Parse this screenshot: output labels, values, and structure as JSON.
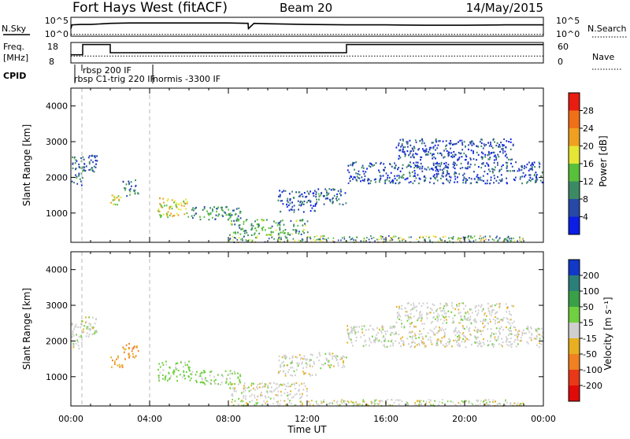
{
  "header": {
    "station": "Fort Hays West (fitACF)",
    "beam": "Beam 20",
    "date": "14/May/2015"
  },
  "strip": {
    "nsky_label": "N.Sky",
    "nsearch_label": "N.Search",
    "noise_ticks_left": [
      "10^5",
      "10^0"
    ],
    "noise_ticks_right": [
      "10^5",
      "10^0"
    ],
    "freq_label_line1": "Freq.",
    "freq_label_line2": "[MHz]",
    "freq_ticks": [
      "18",
      "8"
    ],
    "nave_label": "Nave",
    "nave_ticks": [
      "60",
      "0"
    ],
    "cpid_label": "CPID",
    "cpid_texts": [
      "rbsp 200 IF",
      "rbsp C1-trig 220 IF",
      "normis -3300 IF"
    ]
  },
  "colorbars": {
    "power": {
      "label": "Power [dB]",
      "ticks": [
        "28",
        "24",
        "20",
        "16",
        "12",
        "8",
        "4"
      ],
      "colors": [
        "#0a1ee6",
        "#2848a8",
        "#3c8a64",
        "#58c03a",
        "#e6e634",
        "#f0a020",
        "#f07018",
        "#e81c10"
      ]
    },
    "velocity": {
      "label": "Velocity [m s⁻¹]",
      "ticks": [
        "200",
        "100",
        "50",
        "15",
        "-15",
        "-50",
        "-100",
        "-200"
      ],
      "colors": [
        "#1238c8",
        "#2c7e78",
        "#3aa048",
        "#70d040",
        "#cfcfcf",
        "#e8b020",
        "#f08020",
        "#e83818",
        "#e00a0a"
      ]
    }
  },
  "chart_data": [
    {
      "type": "line",
      "panel": "noise",
      "x_unit": "hours UT",
      "ylim": [
        0,
        5
      ],
      "series": [
        {
          "name": "N.Sky",
          "x": [
            0,
            0.05,
            0.5,
            1,
            2,
            3,
            4,
            6,
            8,
            9.0,
            9.02,
            9.3,
            10,
            12,
            14,
            16,
            18,
            20,
            22,
            24
          ],
          "values": [
            2.0,
            3.0,
            3.1,
            3.1,
            3.4,
            3.5,
            3.5,
            3.5,
            3.5,
            3.4,
            2.0,
            3.4,
            3.3,
            3.1,
            3.0,
            3.0,
            2.9,
            2.9,
            3.0,
            3.0
          ]
        },
        {
          "name": "N.Search",
          "x": [
            0,
            24
          ],
          "values": [
            0.5,
            0.5
          ]
        }
      ]
    },
    {
      "type": "line",
      "panel": "frequency-nave",
      "x_unit": "hours UT",
      "freq_ylim": [
        8,
        18
      ],
      "series": [
        {
          "name": "Freq.",
          "x": [
            0,
            0.6,
            0.6,
            2.0,
            2.0,
            14.0,
            14.0,
            24
          ],
          "values": [
            12,
            12,
            17,
            17,
            13,
            13,
            17,
            17
          ]
        },
        {
          "name": "Nave",
          "x": [
            0,
            24
          ],
          "values": [
            20,
            20
          ]
        }
      ]
    },
    {
      "type": "heatmap",
      "panel": "power",
      "xlabel": "",
      "ylabel": "Slant Range [km]",
      "xlim": [
        0,
        24
      ],
      "ylim": [
        180,
        4500
      ],
      "y_ticks": [
        1000,
        2000,
        3000,
        4000
      ],
      "value_unit": "dB",
      "clim": [
        0,
        32
      ],
      "regions": [
        {
          "t0": 0.0,
          "t1": 0.6,
          "r0": 1800,
          "r1": 2600,
          "v": 8
        },
        {
          "t0": 0.5,
          "t1": 1.3,
          "r0": 2100,
          "r1": 2700,
          "v": 7
        },
        {
          "t0": 2.0,
          "t1": 2.6,
          "r0": 1250,
          "r1": 1600,
          "v": 18
        },
        {
          "t0": 2.6,
          "t1": 3.4,
          "r0": 1500,
          "r1": 1950,
          "v": 9
        },
        {
          "t0": 4.4,
          "t1": 6.0,
          "r0": 900,
          "r1": 1450,
          "v": 18
        },
        {
          "t0": 6.0,
          "t1": 8.6,
          "r0": 800,
          "r1": 1200,
          "v": 10
        },
        {
          "t0": 8.0,
          "t1": 12.0,
          "r0": 400,
          "r1": 850,
          "v": 12
        },
        {
          "t0": 10.5,
          "t1": 12.5,
          "r0": 1050,
          "r1": 1650,
          "v": 6
        },
        {
          "t0": 12.5,
          "t1": 14.0,
          "r0": 1250,
          "r1": 1700,
          "v": 8
        },
        {
          "t0": 14.0,
          "t1": 24.0,
          "r0": 1850,
          "r1": 2450,
          "v": 6
        },
        {
          "t0": 16.5,
          "t1": 22.5,
          "r0": 2500,
          "r1": 3100,
          "v": 6
        }
      ]
    },
    {
      "type": "heatmap",
      "panel": "velocity",
      "xlabel": "Time UT",
      "ylabel": "Slant Range [km]",
      "xlim": [
        0,
        24
      ],
      "ylim": [
        180,
        4500
      ],
      "x_ticks": [
        "00:00",
        "04:00",
        "08:00",
        "12:00",
        "16:00",
        "20:00",
        "00:00"
      ],
      "y_ticks": [
        1000,
        2000,
        3000,
        4000
      ],
      "value_unit": "m/s",
      "clim": [
        -250,
        250
      ],
      "regions": [
        {
          "t0": 0.0,
          "t1": 0.6,
          "r0": 1800,
          "r1": 2600,
          "v": 0
        },
        {
          "t0": 0.5,
          "t1": 1.3,
          "r0": 2100,
          "r1": 2700,
          "v": 0
        },
        {
          "t0": 2.0,
          "t1": 2.6,
          "r0": 1250,
          "r1": 1600,
          "v": -40
        },
        {
          "t0": 2.6,
          "t1": 3.4,
          "r0": 1500,
          "r1": 1950,
          "v": -60
        },
        {
          "t0": 4.4,
          "t1": 6.0,
          "r0": 900,
          "r1": 1450,
          "v": 30
        },
        {
          "t0": 6.0,
          "t1": 8.6,
          "r0": 800,
          "r1": 1200,
          "v": 25
        },
        {
          "t0": 8.0,
          "t1": 12.0,
          "r0": 400,
          "r1": 850,
          "v": 0
        },
        {
          "t0": 10.5,
          "t1": 12.5,
          "r0": 1050,
          "r1": 1650,
          "v": 0
        },
        {
          "t0": 12.5,
          "t1": 14.0,
          "r0": 1250,
          "r1": 1700,
          "v": 0
        },
        {
          "t0": 14.0,
          "t1": 24.0,
          "r0": 1850,
          "r1": 2450,
          "v": 0
        },
        {
          "t0": 16.5,
          "t1": 22.5,
          "r0": 2500,
          "r1": 3100,
          "v": 0
        }
      ]
    }
  ]
}
